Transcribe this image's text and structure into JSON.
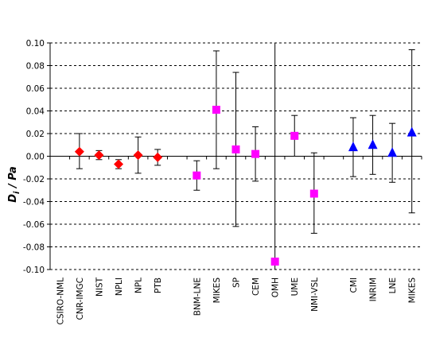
{
  "chart_data": {
    "type": "scatter",
    "ylabel": "Dᵢ / Pa",
    "ylabel_main": "D",
    "ylabel_sub": "i",
    "ylabel_rest": " / Pa",
    "ylim": [
      -0.1,
      0.1
    ],
    "yticks": [
      -0.1,
      -0.08,
      -0.06,
      -0.04,
      -0.02,
      0.0,
      0.02,
      0.04,
      0.06,
      0.08,
      0.1
    ],
    "ytick_labels": [
      "-0.10",
      "-0.08",
      "-0.06",
      "-0.04",
      "-0.02",
      "0.00",
      "0.02",
      "0.04",
      "0.06",
      "0.08",
      "0.10"
    ],
    "grid": "horizontal dashed",
    "legend": "none",
    "categories": [
      "CSIRO-NML",
      "CNR-IMGC",
      "NIST",
      "NPLI",
      "NPL",
      "PTB",
      "",
      "BNM-LNE",
      "MIKES",
      "SP",
      "CEM",
      "OMH",
      "UME",
      "NMI-VSL",
      "",
      "CMI",
      "INRIM",
      "LNE",
      "MIKES"
    ],
    "series": [
      {
        "marker": "diamond",
        "color": "#ff0000",
        "points": [
          {
            "x": "CNR-IMGC",
            "y": 0.004,
            "err_low": -0.011,
            "err_high": 0.02
          },
          {
            "x": "NIST",
            "y": 0.001,
            "err_low": -0.003,
            "err_high": 0.005
          },
          {
            "x": "NPLI",
            "y": -0.007,
            "err_low": -0.011,
            "err_high": -0.003
          },
          {
            "x": "NPL",
            "y": 0.001,
            "err_low": -0.015,
            "err_high": 0.017
          },
          {
            "x": "PTB",
            "y": -0.001,
            "err_low": -0.008,
            "err_high": 0.006
          }
        ]
      },
      {
        "marker": "square",
        "color": "#ff00ff",
        "points": [
          {
            "x": "BNM-LNE",
            "y": -0.017,
            "err_low": -0.03,
            "err_high": -0.004
          },
          {
            "x": "MIKES",
            "y": 0.041,
            "err_low": -0.011,
            "err_high": 0.093
          },
          {
            "x": "SP",
            "y": 0.006,
            "err_low": -0.062,
            "err_high": 0.074
          },
          {
            "x": "CEM",
            "y": 0.002,
            "err_low": -0.022,
            "err_high": 0.026
          },
          {
            "x": "OMH",
            "y": -0.093,
            "err_low": -0.1,
            "err_high": 0.1
          },
          {
            "x": "UME",
            "y": 0.018,
            "err_low": 0.0,
            "err_high": 0.036
          },
          {
            "x": "NMI-VSL",
            "y": -0.033,
            "err_low": -0.068,
            "err_high": 0.003
          }
        ]
      },
      {
        "marker": "triangle",
        "color": "#0000ff",
        "points": [
          {
            "x": "CMI",
            "y": 0.008,
            "err_low": -0.018,
            "err_high": 0.034
          },
          {
            "x": "INRIM",
            "y": 0.01,
            "err_low": -0.016,
            "err_high": 0.036
          },
          {
            "x": "LNE",
            "y": 0.003,
            "err_low": -0.023,
            "err_high": 0.029
          },
          {
            "x": "MIKES",
            "y": 0.021,
            "err_low": -0.05,
            "err_high": 0.094
          }
        ]
      }
    ]
  }
}
